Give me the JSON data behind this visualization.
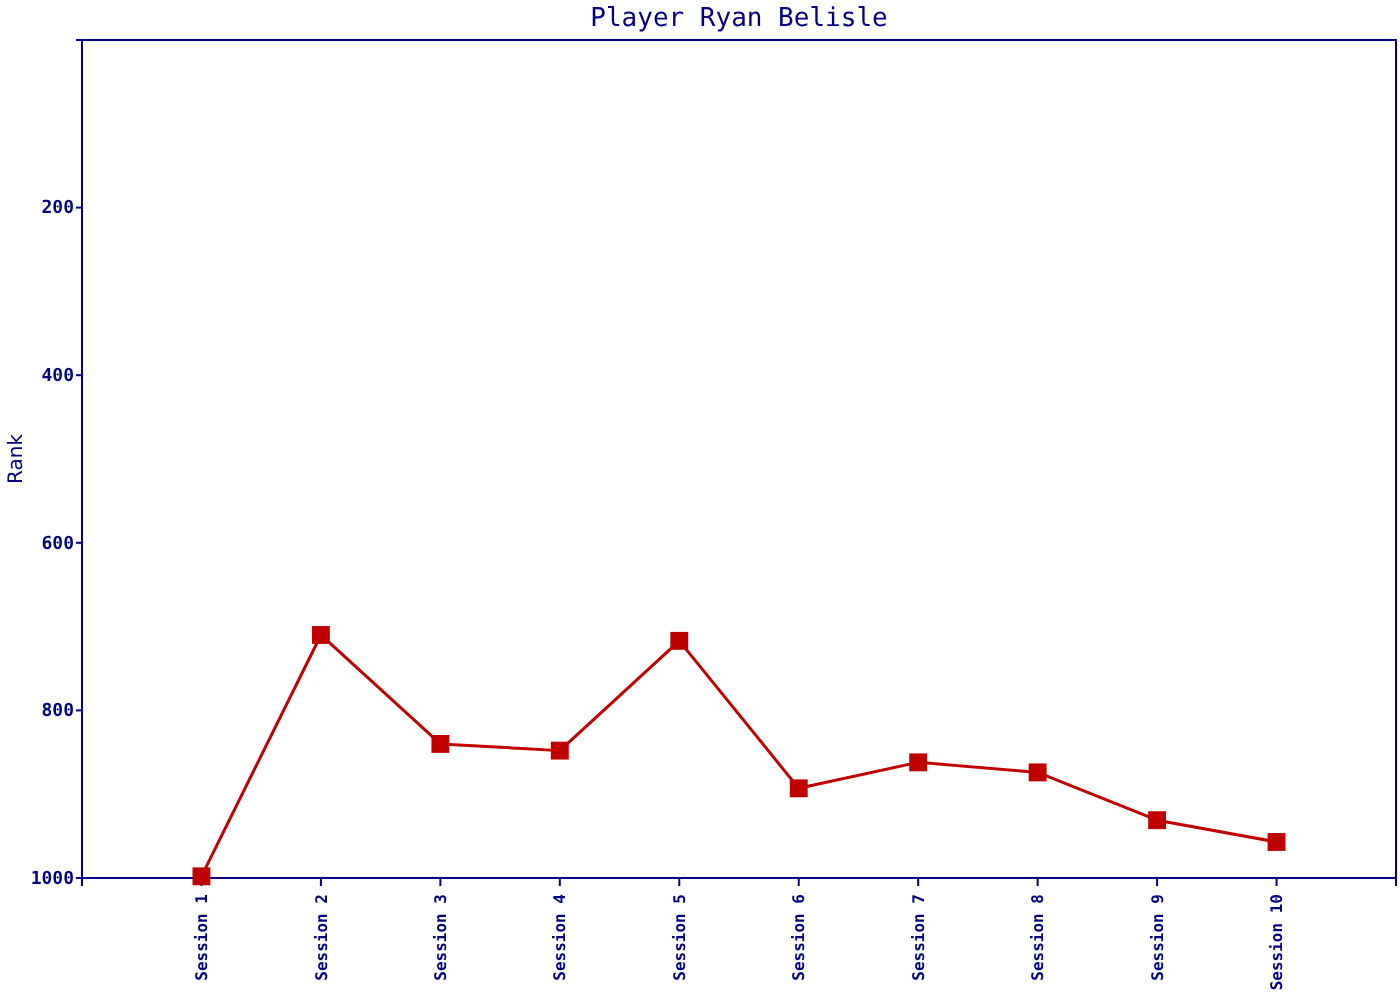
{
  "chart_data": {
    "type": "line",
    "title": "Player Ryan Belisle",
    "ylabel": "Rank",
    "categories": [
      "Session 1",
      "Session 2",
      "Session 3",
      "Session 4",
      "Session 5",
      "Session 6",
      "Session 7",
      "Session 8",
      "Session 9",
      "Session 10"
    ],
    "series": [
      {
        "color": "#c00000",
        "values": [
          998,
          710,
          840,
          848,
          717,
          893,
          862,
          874,
          931,
          957
        ]
      }
    ],
    "ylim": [
      1000,
      0
    ],
    "yticks": [
      200,
      400,
      600,
      800,
      1000
    ],
    "marker": "square",
    "line_style": "solid"
  }
}
